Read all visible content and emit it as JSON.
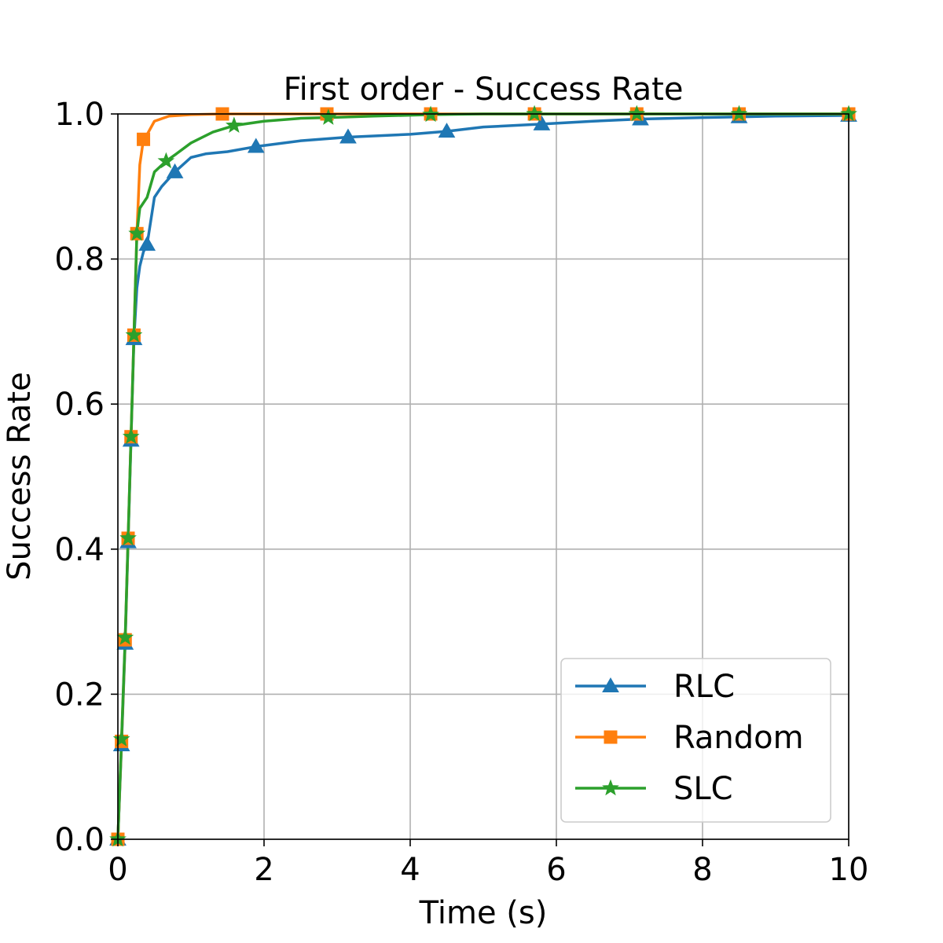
{
  "chart_data": {
    "type": "line",
    "title": "First order - Success Rate",
    "xlabel": "Time (s)",
    "ylabel": "Success Rate",
    "xlim": [
      0,
      10
    ],
    "ylim": [
      0,
      1
    ],
    "xticks": [
      0,
      2,
      4,
      6,
      8,
      10
    ],
    "xtick_labels": [
      "0",
      "2",
      "4",
      "6",
      "8",
      "10"
    ],
    "yticks": [
      0,
      0.2,
      0.4,
      0.6,
      0.8,
      1.0
    ],
    "ytick_labels": [
      "0.0",
      "0.2",
      "0.4",
      "0.6",
      "0.8",
      "1.0"
    ],
    "grid": true,
    "legend_position": "bottom-right",
    "series": [
      {
        "name": "RLC",
        "color": "#1f77b4",
        "marker": "triangle",
        "x": [
          0,
          0.05,
          0.1,
          0.14,
          0.18,
          0.22,
          0.26,
          0.3,
          0.35,
          0.4,
          0.5,
          0.6,
          0.78,
          1.0,
          1.2,
          1.5,
          1.89,
          2.5,
          3.15,
          4.0,
          4.5,
          5.0,
          5.8,
          6.5,
          7.15,
          8.0,
          8.5,
          9.0,
          10.0
        ],
        "y": [
          0.0,
          0.13,
          0.27,
          0.41,
          0.55,
          0.69,
          0.76,
          0.79,
          0.81,
          0.82,
          0.885,
          0.9,
          0.92,
          0.94,
          0.945,
          0.948,
          0.955,
          0.963,
          0.968,
          0.972,
          0.976,
          0.982,
          0.986,
          0.99,
          0.993,
          0.995,
          0.996,
          0.997,
          0.998
        ]
      },
      {
        "name": "Random",
        "color": "#ff7f0e",
        "marker": "square",
        "x": [
          0,
          0.05,
          0.1,
          0.14,
          0.18,
          0.22,
          0.26,
          0.3,
          0.35,
          0.38,
          0.5,
          0.7,
          1.0,
          1.43,
          2.0,
          2.86,
          4.28,
          5.7,
          7.1,
          8.5,
          10.0
        ],
        "y": [
          0.0,
          0.135,
          0.275,
          0.415,
          0.555,
          0.695,
          0.835,
          0.93,
          0.965,
          0.968,
          0.99,
          0.997,
          0.999,
          1.0,
          1.0,
          1.0,
          1.0,
          1.0,
          1.0,
          1.0,
          1.0
        ]
      },
      {
        "name": "SLC",
        "color": "#2ca02c",
        "marker": "star",
        "x": [
          0,
          0.05,
          0.1,
          0.14,
          0.18,
          0.22,
          0.26,
          0.3,
          0.4,
          0.5,
          0.66,
          0.8,
          1.0,
          1.3,
          1.59,
          2.0,
          2.5,
          2.88,
          3.5,
          4.28,
          5.0,
          5.7,
          7.1,
          8.5,
          10.0
        ],
        "y": [
          0.0,
          0.138,
          0.278,
          0.415,
          0.555,
          0.695,
          0.835,
          0.87,
          0.885,
          0.92,
          0.935,
          0.945,
          0.96,
          0.975,
          0.984,
          0.99,
          0.994,
          0.995,
          0.997,
          0.999,
          1.0,
          1.0,
          1.0,
          1.0,
          1.0
        ]
      }
    ],
    "marker_points": [
      {
        "series": "RLC",
        "x": [
          0.0,
          0.05,
          0.1,
          0.14,
          0.18,
          0.22,
          0.4,
          0.78,
          1.89,
          3.15,
          4.5,
          5.8,
          7.15,
          8.5,
          10.0
        ],
        "y": [
          0.0,
          0.13,
          0.27,
          0.41,
          0.55,
          0.69,
          0.82,
          0.92,
          0.955,
          0.968,
          0.976,
          0.986,
          0.993,
          0.996,
          0.998
        ]
      },
      {
        "series": "Random",
        "x": [
          0.0,
          0.05,
          0.1,
          0.14,
          0.18,
          0.22,
          0.26,
          0.35,
          1.43,
          2.86,
          4.28,
          5.7,
          7.1,
          8.5,
          10.0
        ],
        "y": [
          0.0,
          0.135,
          0.275,
          0.415,
          0.555,
          0.695,
          0.835,
          0.965,
          1.0,
          1.0,
          1.0,
          1.0,
          1.0,
          1.0,
          1.0
        ]
      },
      {
        "series": "SLC",
        "x": [
          0.0,
          0.05,
          0.1,
          0.14,
          0.18,
          0.22,
          0.26,
          0.66,
          1.59,
          2.88,
          4.28,
          5.7,
          7.1,
          8.5,
          10.0
        ],
        "y": [
          0.0,
          0.138,
          0.278,
          0.415,
          0.555,
          0.695,
          0.835,
          0.935,
          0.984,
          0.995,
          0.999,
          1.0,
          1.0,
          1.0,
          1.0
        ]
      }
    ]
  }
}
